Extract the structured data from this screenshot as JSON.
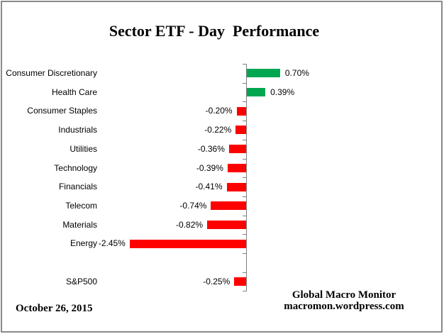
{
  "title": "Sector ETF - Day  Performance",
  "footer": {
    "date": "October 26, 2015",
    "credit_line1": "Global Macro Monitor",
    "credit_line2": "macromon.wordpress.com"
  },
  "colors": {
    "positive_bar": "#00A650",
    "negative_bar": "#FF0000",
    "axis": "#808080",
    "text": "#000000",
    "background": "#FFFFFF",
    "border": "#8A8A8A"
  },
  "chart_data": {
    "type": "bar",
    "orientation": "horizontal",
    "title": "Sector ETF - Day  Performance",
    "unit": "%",
    "value_axis_hidden": true,
    "grid": false,
    "legend": false,
    "categories": [
      "Consumer Discretionary",
      "Health Care",
      "Consumer Staples",
      "Industrials",
      "Utilities",
      "Technology",
      "Financials",
      "Telecom",
      "Materials",
      "Energy",
      "",
      "S&P500"
    ],
    "values": [
      0.7,
      0.39,
      -0.2,
      -0.22,
      -0.36,
      -0.39,
      -0.41,
      -0.74,
      -0.82,
      -2.45,
      null,
      -0.25
    ],
    "value_labels": [
      "0.70%",
      "0.39%",
      "-0.20%",
      "-0.22%",
      "-0.36%",
      "-0.39%",
      "-0.41%",
      "-0.74%",
      "-0.82%",
      "-2.45%",
      "",
      "-0.25%"
    ],
    "xlim": [
      -2.6,
      1.0
    ]
  }
}
